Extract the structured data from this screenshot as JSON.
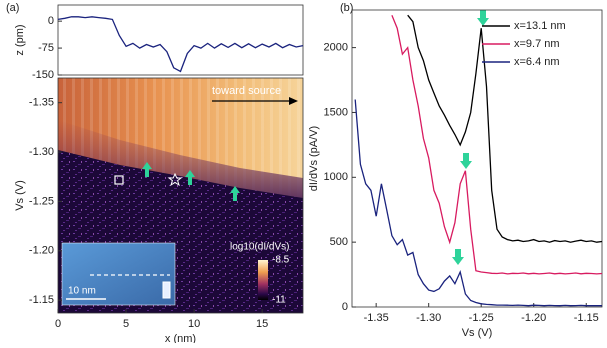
{
  "chart_data": [
    {
      "type": "line",
      "panel": "(a)",
      "ylabel": "z (pm)",
      "xlim": [
        0,
        18
      ],
      "ylim": [
        -150,
        45
      ],
      "yticks": [
        0,
        -75,
        -150
      ],
      "color": "#1a237e",
      "x": [
        0,
        0.5,
        1,
        1.5,
        2,
        2.5,
        3,
        3.5,
        4,
        4.5,
        5,
        5.5,
        6,
        6.5,
        7,
        7.5,
        8,
        8.5,
        9,
        9.5,
        10,
        10.5,
        11,
        11.5,
        12,
        12.5,
        13,
        13.5,
        14,
        14.5,
        15,
        15.5,
        16,
        16.5,
        17,
        17.5,
        18
      ],
      "values": [
        5,
        8,
        12,
        12,
        10,
        12,
        10,
        8,
        5,
        -40,
        -70,
        -62,
        -75,
        -65,
        -72,
        -65,
        -85,
        -130,
        -140,
        -90,
        -68,
        -75,
        -62,
        -75,
        -63,
        -73,
        -62,
        -74,
        -63,
        -74,
        -64,
        -72,
        -62,
        -74,
        -65,
        -72,
        -68
      ]
    },
    {
      "type": "heatmap",
      "xlabel": "x (nm)",
      "ylabel": "Vs (V)",
      "xlim": [
        0,
        18
      ],
      "xticks": [
        0,
        5,
        10,
        15
      ],
      "ylim": [
        -1.137,
        -1.375
      ],
      "yticks": [
        -1.35,
        {
          "value": -1.3,
          "label": "-1.30"
        },
        -1.25,
        {
          "value": -1.2,
          "label": "-1.20"
        },
        -1.15
      ],
      "annotation": "toward source",
      "inset_scale": "10 nm",
      "colorbar": {
        "label": "log10(dI/dVs)",
        "lim": [
          -11,
          -8.5
        ],
        "ticks": [
          -8.5,
          -11
        ]
      }
    },
    {
      "type": "line",
      "panel": "(b)",
      "xlabel": "Vs (V)",
      "ylabel": "dI/dVs (pA/V)",
      "xlim": [
        -1.373,
        -1.135
      ],
      "ylim": [
        0,
        2290
      ],
      "xticks": [
        -1.35,
        {
          "value": -1.3,
          "label": "-1.30"
        },
        -1.25,
        {
          "value": -1.2,
          "label": "-1.20"
        },
        -1.15
      ],
      "yticks": [
        0,
        500,
        1000,
        1500,
        2000
      ],
      "legend": "upper right",
      "x": [
        -1.37,
        -1.365,
        -1.36,
        -1.355,
        -1.35,
        -1.345,
        -1.34,
        -1.335,
        -1.33,
        -1.325,
        -1.32,
        -1.315,
        -1.31,
        -1.305,
        -1.3,
        -1.295,
        -1.29,
        -1.285,
        -1.28,
        -1.275,
        -1.27,
        -1.265,
        -1.26,
        -1.255,
        -1.25,
        -1.245,
        -1.24,
        -1.235,
        -1.23,
        -1.225,
        -1.22,
        -1.215,
        -1.21,
        -1.205,
        -1.2,
        -1.195,
        -1.19,
        -1.185,
        -1.18,
        -1.175,
        -1.17,
        -1.165,
        -1.16,
        -1.155,
        -1.15,
        -1.145,
        -1.14,
        -1.135
      ],
      "series": [
        {
          "name": "x=13.1 nm",
          "color": "#000000",
          "values": [
            null,
            null,
            null,
            null,
            null,
            null,
            null,
            null,
            null,
            null,
            2250,
            2200,
            2000,
            1900,
            1750,
            1650,
            1550,
            1480,
            1400,
            1330,
            1250,
            1350,
            1500,
            1800,
            2150,
            1700,
            900,
            600,
            540,
            520,
            510,
            515,
            505,
            510,
            520,
            505,
            510,
            500,
            512,
            505,
            510,
            500,
            508,
            515,
            505,
            510,
            500,
            505
          ]
        },
        {
          "name": "x=9.7 nm",
          "color": "#d81b60",
          "values": [
            null,
            null,
            null,
            null,
            null,
            null,
            null,
            2250,
            2150,
            1950,
            2000,
            1750,
            1550,
            1300,
            1150,
            900,
            800,
            620,
            500,
            650,
            950,
            1050,
            600,
            280,
            270,
            265,
            260,
            258,
            262,
            255,
            260,
            258,
            262,
            256,
            260,
            255,
            258,
            262,
            256,
            260,
            255,
            258,
            262,
            256,
            260,
            258,
            255,
            258
          ]
        },
        {
          "name": "x=6.4 nm",
          "color": "#1a237e",
          "values": [
            1600,
            1100,
            950,
            900,
            700,
            950,
            750,
            550,
            480,
            520,
            400,
            420,
            250,
            180,
            130,
            120,
            140,
            200,
            240,
            180,
            270,
            100,
            50,
            35,
            25,
            20,
            18,
            15,
            15,
            14,
            12,
            15,
            12,
            10,
            14,
            12,
            10,
            12,
            11,
            10,
            12,
            10,
            11,
            12,
            10,
            11,
            10,
            10
          ]
        }
      ]
    }
  ]
}
